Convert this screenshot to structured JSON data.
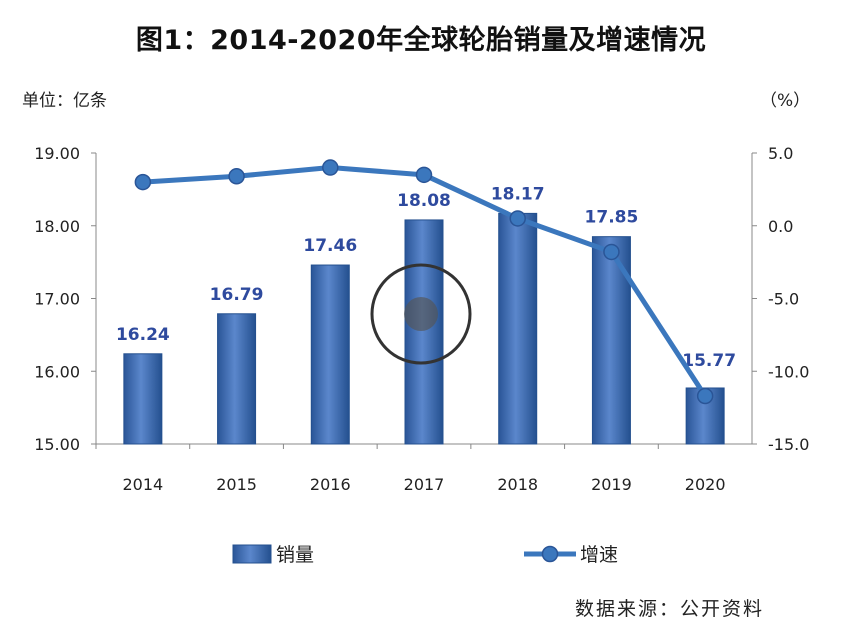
{
  "title": "图1：2014-2020年全球轮胎销量及增速情况",
  "left_unit_label": "单位：亿条",
  "right_unit_label": "（%）",
  "source_note": "数据来源：公开资料",
  "colors": {
    "bar": "#3d6cb5",
    "bar_dark": "#24508f",
    "line": "#3b77bd",
    "label": "#2e4a9e"
  },
  "chart_data": {
    "type": "bar",
    "categories": [
      "2014",
      "2015",
      "2016",
      "2017",
      "2018",
      "2019",
      "2020"
    ],
    "series": [
      {
        "name": "销量",
        "type": "bar",
        "axis": "left",
        "values": [
          16.24,
          16.79,
          17.46,
          18.08,
          18.17,
          17.85,
          15.77
        ]
      },
      {
        "name": "增速",
        "type": "line",
        "axis": "right",
        "values": [
          3.0,
          3.4,
          4.0,
          3.5,
          0.5,
          -1.8,
          -11.7
        ]
      }
    ],
    "data_labels": [
      "16.24",
      "16.79",
      "17.46",
      "18.08",
      "18.17",
      "17.85",
      "15.77"
    ],
    "y_left": {
      "range": [
        15,
        19
      ],
      "ticks": [
        "15.00",
        "16.00",
        "17.00",
        "18.00",
        "19.00"
      ]
    },
    "y_right": {
      "range": [
        -15,
        5
      ],
      "ticks": [
        "-15.0",
        "-10.0",
        "-5.0",
        "0.0",
        "5.0"
      ]
    },
    "grid": false,
    "legend_position": "bottom"
  }
}
